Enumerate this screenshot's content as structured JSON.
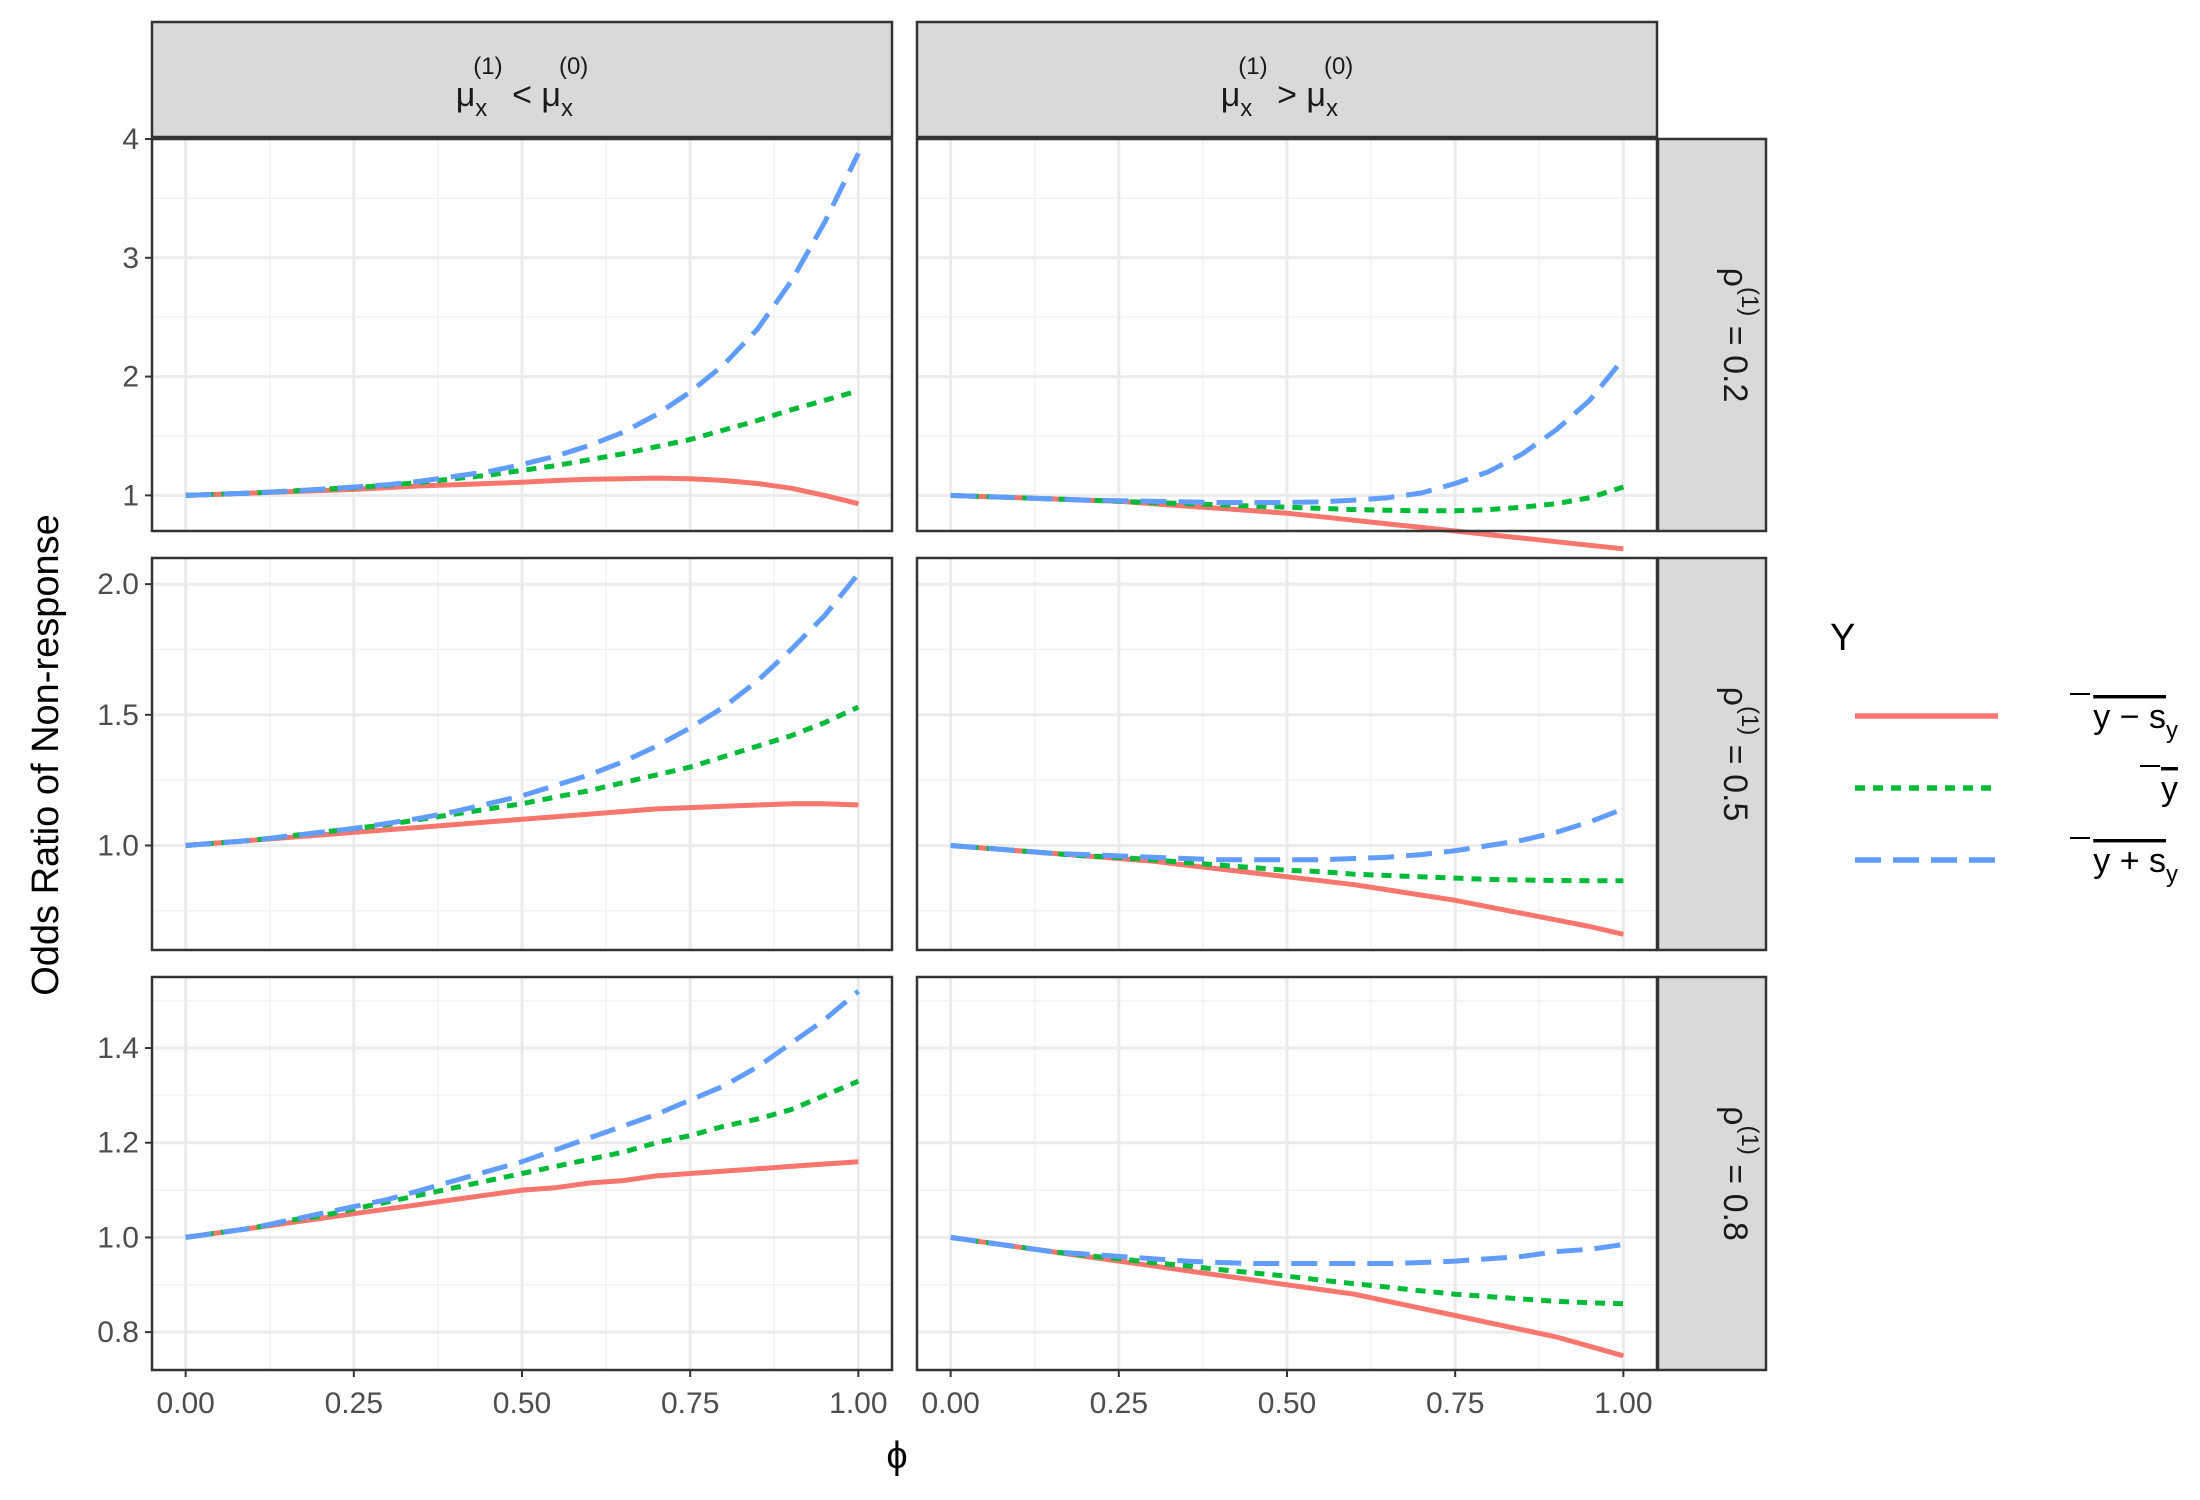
{
  "chart_data": {
    "type": "line",
    "xlabel": "ϕ",
    "ylabel": "Odds Ratio of Non-response",
    "x_ticks": [
      "0.00",
      "0.25",
      "0.50",
      "0.75",
      "1.00"
    ],
    "x": [
      0,
      0.05,
      0.1,
      0.15,
      0.2,
      0.25,
      0.3,
      0.35,
      0.4,
      0.45,
      0.5,
      0.55,
      0.6,
      0.65,
      0.7,
      0.75,
      0.8,
      0.85,
      0.9,
      0.95,
      1.0
    ],
    "xlim": [
      -0.05,
      1.05
    ],
    "columns": [
      {
        "main": "μ",
        "sub": "x",
        "sup": "(1)",
        "op": "<",
        "main2": "μ",
        "sub2": "x",
        "sup2": "(0)"
      },
      {
        "main": "μ",
        "sub": "x",
        "sup": "(1)",
        "op": ">",
        "main2": "μ",
        "sub2": "x",
        "sup2": "(0)"
      }
    ],
    "rows": [
      {
        "label": "ρ",
        "sup": "(1)",
        "value": "= 0.2",
        "ylim": [
          0.7,
          4.0
        ],
        "y_ticks": [
          "1",
          "2",
          "3",
          "4"
        ],
        "y_tick_values": [
          1,
          2,
          3,
          4
        ]
      },
      {
        "label": "ρ",
        "sup": "(1)",
        "value": "= 0.5",
        "ylim": [
          0.6,
          2.1
        ],
        "y_ticks": [
          "1.0",
          "1.5",
          "2.0"
        ],
        "y_tick_values": [
          1.0,
          1.5,
          2.0
        ]
      },
      {
        "label": "ρ",
        "sup": "(1)",
        "value": "= 0.8",
        "ylim": [
          0.72,
          1.55
        ],
        "y_ticks": [
          "0.8",
          "1.0",
          "1.2",
          "1.4"
        ],
        "y_tick_values": [
          0.8,
          1.0,
          1.2,
          1.4
        ]
      }
    ],
    "legend": {
      "title": "Y",
      "entries": [
        {
          "label": "y − s",
          "sub": "y",
          "color": "#F8766D",
          "dash": "solid"
        },
        {
          "label": "y",
          "sub": "",
          "color": "#00BA38",
          "dash": "dotted"
        },
        {
          "label": "y + s",
          "sub": "y",
          "color": "#619CFF",
          "dash": "dashed"
        }
      ]
    },
    "panels": [
      {
        "row": 0,
        "col": 0,
        "series": [
          {
            "name": "y − s_y",
            "values": [
              1.0,
              1.01,
              1.02,
              1.03,
              1.04,
              1.05,
              1.065,
              1.08,
              1.09,
              1.1,
              1.11,
              1.125,
              1.135,
              1.14,
              1.145,
              1.14,
              1.125,
              1.1,
              1.06,
              1.0,
              0.93
            ]
          },
          {
            "name": "y",
            "values": [
              1.0,
              1.01,
              1.02,
              1.035,
              1.05,
              1.065,
              1.085,
              1.11,
              1.14,
              1.17,
              1.21,
              1.25,
              1.3,
              1.35,
              1.41,
              1.47,
              1.55,
              1.63,
              1.72,
              1.8,
              1.88
            ]
          },
          {
            "name": "y + s_y",
            "values": [
              1.0,
              1.01,
              1.02,
              1.035,
              1.05,
              1.07,
              1.09,
              1.12,
              1.16,
              1.2,
              1.26,
              1.33,
              1.42,
              1.53,
              1.68,
              1.87,
              2.1,
              2.4,
              2.8,
              3.3,
              3.88
            ]
          }
        ]
      },
      {
        "row": 0,
        "col": 1,
        "series": [
          {
            "name": "y − s_y",
            "values": [
              1.0,
              0.99,
              0.98,
              0.97,
              0.96,
              0.95,
              0.93,
              0.91,
              0.89,
              0.87,
              0.85,
              0.82,
              0.79,
              0.76,
              0.73,
              0.7,
              0.67,
              0.64,
              0.61,
              0.58,
              0.55
            ]
          },
          {
            "name": "y",
            "values": [
              1.0,
              0.99,
              0.98,
              0.97,
              0.96,
              0.95,
              0.94,
              0.93,
              0.92,
              0.91,
              0.9,
              0.89,
              0.88,
              0.875,
              0.87,
              0.87,
              0.88,
              0.9,
              0.93,
              0.98,
              1.07
            ]
          },
          {
            "name": "y + s_y",
            "values": [
              1.0,
              0.99,
              0.98,
              0.97,
              0.96,
              0.955,
              0.95,
              0.945,
              0.94,
              0.94,
              0.94,
              0.945,
              0.96,
              0.98,
              1.02,
              1.1,
              1.2,
              1.35,
              1.55,
              1.8,
              2.15
            ]
          }
        ]
      },
      {
        "row": 1,
        "col": 0,
        "series": [
          {
            "name": "y − s_y",
            "values": [
              1.0,
              1.01,
              1.02,
              1.03,
              1.04,
              1.05,
              1.06,
              1.07,
              1.08,
              1.09,
              1.1,
              1.11,
              1.12,
              1.13,
              1.14,
              1.145,
              1.15,
              1.155,
              1.16,
              1.16,
              1.155
            ]
          },
          {
            "name": "y",
            "values": [
              1.0,
              1.01,
              1.02,
              1.035,
              1.05,
              1.065,
              1.08,
              1.1,
              1.12,
              1.14,
              1.16,
              1.185,
              1.21,
              1.24,
              1.27,
              1.3,
              1.34,
              1.38,
              1.42,
              1.47,
              1.53
            ]
          },
          {
            "name": "y + s_y",
            "values": [
              1.0,
              1.01,
              1.02,
              1.035,
              1.05,
              1.065,
              1.085,
              1.105,
              1.13,
              1.16,
              1.19,
              1.23,
              1.27,
              1.32,
              1.38,
              1.45,
              1.53,
              1.63,
              1.75,
              1.88,
              2.04
            ]
          }
        ]
      },
      {
        "row": 1,
        "col": 1,
        "series": [
          {
            "name": "y − s_y",
            "values": [
              1.0,
              0.99,
              0.98,
              0.97,
              0.96,
              0.95,
              0.94,
              0.925,
              0.91,
              0.895,
              0.88,
              0.865,
              0.85,
              0.83,
              0.81,
              0.79,
              0.765,
              0.74,
              0.715,
              0.69,
              0.66
            ]
          },
          {
            "name": "y",
            "values": [
              1.0,
              0.99,
              0.98,
              0.97,
              0.96,
              0.955,
              0.945,
              0.935,
              0.925,
              0.915,
              0.905,
              0.9,
              0.89,
              0.885,
              0.88,
              0.875,
              0.87,
              0.868,
              0.866,
              0.865,
              0.865
            ]
          },
          {
            "name": "y + s_y",
            "values": [
              1.0,
              0.99,
              0.98,
              0.97,
              0.965,
              0.96,
              0.955,
              0.95,
              0.945,
              0.945,
              0.945,
              0.945,
              0.95,
              0.955,
              0.965,
              0.98,
              1.0,
              1.02,
              1.05,
              1.09,
              1.14
            ]
          }
        ]
      },
      {
        "row": 2,
        "col": 0,
        "series": [
          {
            "name": "y − s_y",
            "values": [
              1.0,
              1.01,
              1.02,
              1.03,
              1.04,
              1.05,
              1.06,
              1.07,
              1.08,
              1.09,
              1.1,
              1.105,
              1.115,
              1.12,
              1.13,
              1.135,
              1.14,
              1.145,
              1.15,
              1.155,
              1.16
            ]
          },
          {
            "name": "y",
            "values": [
              1.0,
              1.01,
              1.02,
              1.035,
              1.045,
              1.06,
              1.075,
              1.09,
              1.105,
              1.12,
              1.135,
              1.15,
              1.165,
              1.18,
              1.2,
              1.215,
              1.235,
              1.25,
              1.27,
              1.3,
              1.33
            ]
          },
          {
            "name": "y + s_y",
            "values": [
              1.0,
              1.01,
              1.02,
              1.035,
              1.05,
              1.065,
              1.08,
              1.1,
              1.12,
              1.14,
              1.16,
              1.185,
              1.21,
              1.235,
              1.26,
              1.29,
              1.32,
              1.36,
              1.41,
              1.46,
              1.52
            ]
          }
        ]
      },
      {
        "row": 2,
        "col": 1,
        "series": [
          {
            "name": "y − s_y",
            "values": [
              1.0,
              0.99,
              0.98,
              0.97,
              0.96,
              0.95,
              0.94,
              0.93,
              0.92,
              0.91,
              0.9,
              0.89,
              0.88,
              0.865,
              0.85,
              0.835,
              0.82,
              0.805,
              0.79,
              0.77,
              0.75
            ]
          },
          {
            "name": "y",
            "values": [
              1.0,
              0.99,
              0.98,
              0.97,
              0.962,
              0.955,
              0.947,
              0.94,
              0.932,
              0.925,
              0.918,
              0.91,
              0.902,
              0.895,
              0.887,
              0.88,
              0.875,
              0.87,
              0.865,
              0.862,
              0.86
            ]
          },
          {
            "name": "y + s_y",
            "values": [
              1.0,
              0.99,
              0.98,
              0.97,
              0.965,
              0.96,
              0.955,
              0.95,
              0.947,
              0.945,
              0.945,
              0.945,
              0.945,
              0.945,
              0.947,
              0.95,
              0.955,
              0.96,
              0.97,
              0.975,
              0.985
            ]
          }
        ]
      }
    ]
  }
}
